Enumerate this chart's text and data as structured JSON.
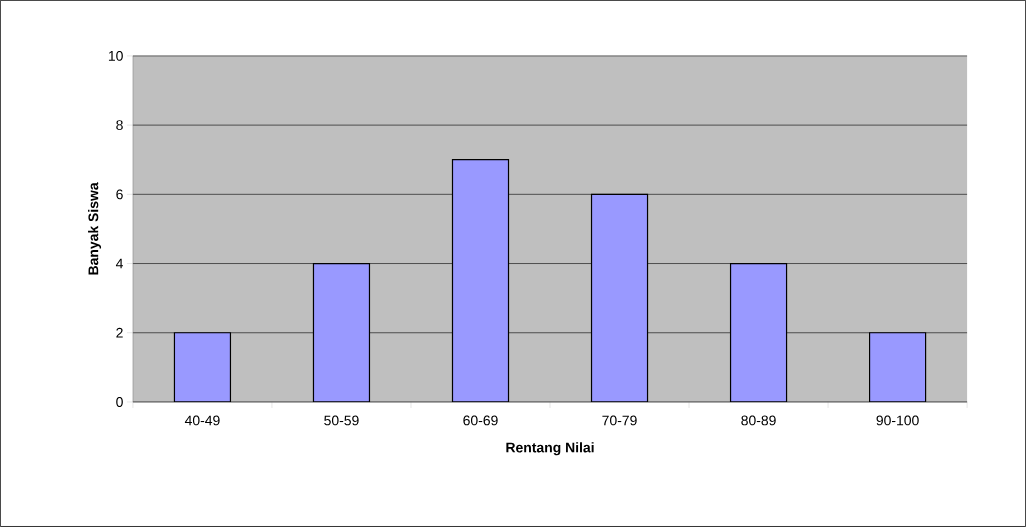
{
  "chart_data": {
    "type": "bar",
    "xlabel": "Rentang Nilai",
    "ylabel": "Banyak Siswa",
    "categories": [
      "40-49",
      "50-59",
      "60-69",
      "70-79",
      "80-89",
      "90-100"
    ],
    "values": [
      2,
      4,
      7,
      6,
      4,
      2
    ],
    "color": "#9999ff",
    "ylim": [
      0,
      10
    ],
    "yticks": [
      0,
      2,
      4,
      6,
      8,
      10
    ],
    "grid": "y"
  }
}
